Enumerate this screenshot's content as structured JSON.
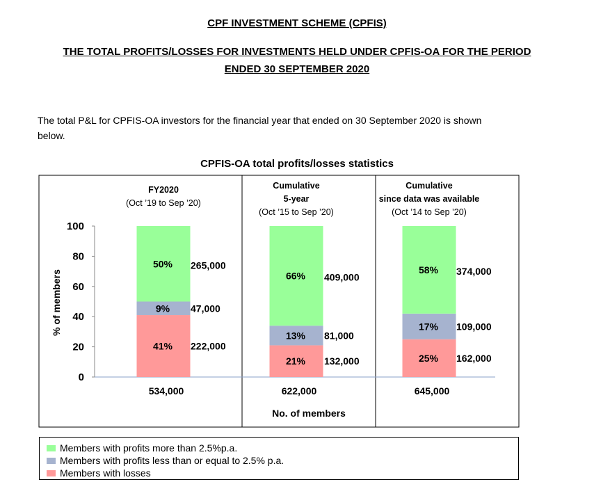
{
  "headings": {
    "title": "CPF INVESTMENT SCHEME (CPFIS)",
    "subtitle_line1": "THE TOTAL PROFITS/LOSSES FOR INVESTMENTS HELD UNDER CPFIS-OA FOR THE PERIOD",
    "subtitle_line2": "ENDED 30 SEPTEMBER 2020"
  },
  "intro": {
    "line1": "The total P&L for CPFIS-OA investors for the financial year that ended on 30 September 2020 is shown",
    "line2": "below."
  },
  "chart_data": {
    "type": "bar",
    "stacked": true,
    "title": "CPFIS-OA total profits/losses statistics",
    "ylabel": "% of members",
    "xlabel": "No. of members",
    "ylim": [
      0,
      100
    ],
    "yticks": [
      "0",
      "20",
      "40",
      "60",
      "80",
      "100"
    ],
    "grid": false,
    "categories": [
      {
        "header": [
          "FY2020",
          "(Oct ’19 to Sep ’20)"
        ],
        "total": "534,000"
      },
      {
        "header": [
          "Cumulative",
          "5-year",
          "(Oct ’15 to Sep ’20)"
        ],
        "total": "622,000"
      },
      {
        "header": [
          "Cumulative",
          "since data was available",
          "(Oct ’14 to Sep ’20)"
        ],
        "total": "645,000"
      }
    ],
    "series": [
      {
        "name": "Members with losses",
        "color": "#ff9999",
        "values": [
          41,
          21,
          25
        ],
        "labels": [
          "41%",
          "21%",
          "25%"
        ],
        "counts": [
          "222,000",
          "132,000",
          "162,000"
        ]
      },
      {
        "name": "Members with profits less than or equal to 2.5% p.a.",
        "color": "#a6b3cf",
        "values": [
          9,
          13,
          17
        ],
        "labels": [
          "9%",
          "13%",
          "17%"
        ],
        "counts": [
          "47,000",
          "81,000",
          "109,000"
        ]
      },
      {
        "name": "Members with profits more than 2.5% p.a.",
        "color": "#99ff99",
        "values": [
          50,
          66,
          58
        ],
        "labels": [
          "50%",
          "66%",
          "58%"
        ],
        "counts": [
          "265,000",
          "409,000",
          "374,000"
        ]
      }
    ],
    "legend": {
      "position": "bottom",
      "items": [
        {
          "label": "Members with profits more than 2.5%p.a.",
          "color": "#99ff99"
        },
        {
          "label": "Members with profits less than or equal to 2.5% p.a.",
          "color": "#a6b3cf"
        },
        {
          "label": "Members with losses",
          "color": "#ff9999"
        }
      ]
    }
  }
}
